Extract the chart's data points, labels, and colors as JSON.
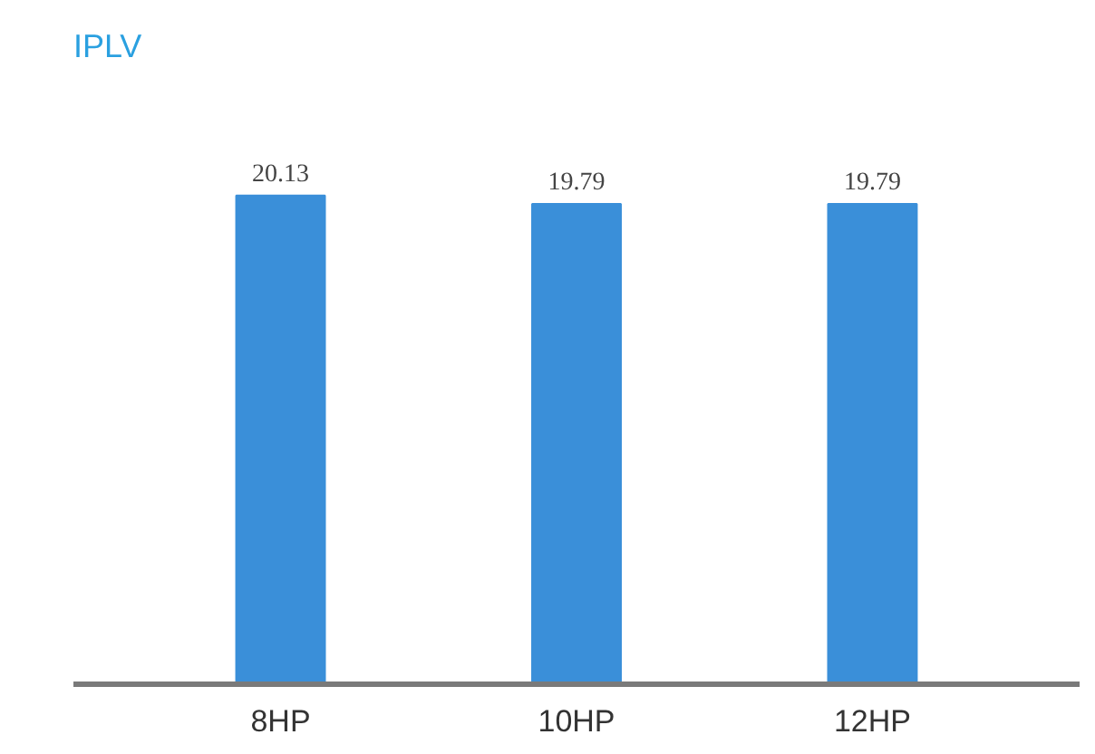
{
  "chart_data": {
    "type": "bar",
    "ylabel": "IPLV",
    "categories": [
      "8HP",
      "10HP",
      "12HP"
    ],
    "values": [
      20.13,
      19.79,
      19.79
    ],
    "color": "#3a8fd9",
    "data_labels": true,
    "grid": false
  }
}
